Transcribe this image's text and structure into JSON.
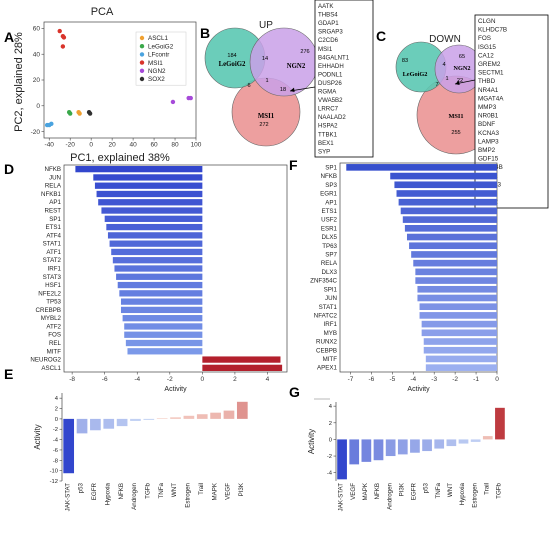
{
  "chart_data": [
    {
      "panel": "A",
      "type": "scatter",
      "title": "PCA",
      "xlabel": "PC1, explained 38%",
      "ylabel": "PC2, explained 28%",
      "xlim": [
        -45,
        100
      ],
      "ylim": [
        -25,
        65
      ],
      "xticks": [
        -40,
        -20,
        0,
        20,
        40,
        60,
        80,
        100
      ],
      "yticks": [
        -20,
        0,
        20,
        40,
        60
      ],
      "legend_position": "top-right",
      "series": [
        {
          "name": "ASCL1",
          "color": "#f0a030",
          "points": [
            [
              -12,
              -5
            ],
            [
              -11,
              -6
            ]
          ]
        },
        {
          "name": "LeGoiG2",
          "color": "#3aa84a",
          "points": [
            [
              -21,
              -5
            ],
            [
              -20,
              -6
            ]
          ]
        },
        {
          "name": "LFcontr",
          "color": "#4aa3df",
          "points": [
            [
              -40,
              -15
            ],
            [
              -38,
              -14
            ],
            [
              -42,
              -15
            ]
          ]
        },
        {
          "name": "MSI1",
          "color": "#d9342b",
          "points": [
            [
              -30,
              58
            ],
            [
              -27,
              54
            ],
            [
              -26,
              53
            ],
            [
              -27,
              46
            ]
          ]
        },
        {
          "name": "NGN2",
          "color": "#a64ad9",
          "points": [
            [
              78,
              3
            ],
            [
              93,
              6
            ],
            [
              95,
              6
            ]
          ]
        },
        {
          "name": "SOX2",
          "color": "#303030",
          "points": [
            [
              -2,
              -5
            ],
            [
              -1,
              -6
            ]
          ]
        }
      ]
    },
    {
      "panel": "B",
      "type": "venn",
      "title": "UP",
      "sets": [
        {
          "name": "LeGoiG2",
          "only": 184,
          "color": "#5bc8b3"
        },
        {
          "name": "NGN2",
          "only": 276,
          "color": "#c9a0e8"
        },
        {
          "name": "MSI1",
          "only": 272,
          "color": "#ec9a9a"
        }
      ],
      "overlaps": {
        "LeGoiG2_NGN2": 14,
        "LeGoiG2_MSI1": 6,
        "NGN2_MSI1": 18,
        "all": 1
      },
      "genes": [
        "AATK",
        "THBS4",
        "GDAP1",
        "SRGAP3",
        "C2CD6",
        "MSI1",
        "B4GALNT1",
        "EHHADH",
        "PODNL1",
        "DUSP26",
        "RGMA",
        "VWA5B2",
        "LRRC7",
        "NAALAD2",
        "HSPA2",
        "TTBK1",
        "BEX1",
        "SYP"
      ]
    },
    {
      "panel": "C",
      "type": "venn",
      "title": "DOWN",
      "sets": [
        {
          "name": "LeGoiG2",
          "only": 83,
          "color": "#5bc8b3"
        },
        {
          "name": "NGN2",
          "only": 65,
          "color": "#c9a0e8"
        },
        {
          "name": "MSI1",
          "only": 255,
          "color": "#ec9a9a"
        }
      ],
      "overlaps": {
        "LeGoiG2_NGN2": 4,
        "LeGoiG2_MSI1": 7,
        "NGN2_MSI1": 22,
        "all": 1
      },
      "genes": [
        "CLGN",
        "KLHDC7B",
        "FOS",
        "ISG15",
        "CA12",
        "GREM2",
        "SECTM1",
        "THBD",
        "NR4A1",
        "MGAT4A",
        "MMP3",
        "NR0B1",
        "BDNF",
        "KCNA3",
        "LAMP3",
        "BMP2",
        "GDF15",
        "C2CD4B",
        "PLPP1",
        "ATP2A3",
        "SHFL",
        "P2RY2"
      ]
    },
    {
      "panel": "D",
      "type": "bar",
      "orientation": "horizontal",
      "xlabel": "Activity",
      "xlim": [
        -8.5,
        5.2
      ],
      "xticks": [
        -8,
        -6,
        -4,
        -2,
        0,
        2,
        4
      ],
      "categories": [
        "NFKB",
        "JUN",
        "RELA",
        "NFKB1",
        "AP1",
        "REST",
        "SP1",
        "ETS1",
        "ATF4",
        "STAT1",
        "ATF1",
        "STAT2",
        "IRF1",
        "STAT3",
        "HSF1",
        "NFE2L2",
        "TP53",
        "CREBPB",
        "MYBL2",
        "ATF2",
        "FOS",
        "REL",
        "MITF",
        "NEUROG2",
        "ASCL1"
      ],
      "values": [
        -7.8,
        -6.7,
        -6.6,
        -6.5,
        -6.4,
        -6.2,
        -6.0,
        -5.9,
        -5.8,
        -5.7,
        -5.6,
        -5.5,
        -5.4,
        -5.3,
        -5.2,
        -5.1,
        -5.0,
        -5.0,
        -4.9,
        -4.8,
        -4.8,
        -4.7,
        -4.6,
        4.8,
        4.9
      ]
    },
    {
      "panel": "F",
      "type": "bar",
      "orientation": "horizontal",
      "xlabel": "Activity",
      "xlim": [
        -7.5,
        0
      ],
      "xticks": [
        -7,
        -6,
        -5,
        -4,
        -3,
        -2,
        -1,
        0
      ],
      "categories": [
        "SP1",
        "NFKB",
        "SP3",
        "EGR1",
        "AP1",
        "ETS1",
        "USF2",
        "ESR1",
        "DLX5",
        "TP63",
        "SP7",
        "RELA",
        "DLX3",
        "ZNF354C",
        "SPI1",
        "JUN",
        "STAT1",
        "NFATC2",
        "IRF1",
        "MYB",
        "RUNX2",
        "CEBPB",
        "MITF",
        "APEX1"
      ],
      "values": [
        -7.2,
        -5.1,
        -4.9,
        -4.8,
        -4.7,
        -4.6,
        -4.5,
        -4.4,
        -4.3,
        -4.2,
        -4.1,
        -4.0,
        -3.9,
        -3.9,
        -3.8,
        -3.8,
        -3.7,
        -3.7,
        -3.6,
        -3.6,
        -3.5,
        -3.5,
        -3.4,
        -3.4
      ]
    },
    {
      "panel": "E",
      "type": "bar",
      "ylabel": "Activity",
      "ylim": [
        -12,
        5
      ],
      "yticks": [
        4,
        2,
        0,
        -2,
        -4,
        -6,
        -8,
        -10,
        -12
      ],
      "categories": [
        "JAK-STAT",
        "p53",
        "EGFR",
        "Hypoxia",
        "NFKB",
        "Androgen",
        "TGFb",
        "TNFa",
        "WNT",
        "Estrogen",
        "Trail",
        "MAPK",
        "VEGF",
        "PI3K"
      ],
      "values": [
        -10.5,
        -2.8,
        -2.2,
        -1.9,
        -1.4,
        -0.4,
        -0.2,
        0.1,
        0.3,
        0.6,
        0.9,
        1.2,
        1.6,
        3.3
      ]
    },
    {
      "panel": "G",
      "type": "bar",
      "ylabel": "Activity",
      "ylim": [
        -5,
        4.5
      ],
      "yticks": [
        4,
        2,
        0,
        -2,
        -4
      ],
      "categories": [
        "JAK-STAT",
        "VEGF",
        "MAPK",
        "NFKB",
        "Androgen",
        "PI3K",
        "EGFR",
        "p53",
        "TNFa",
        "WNT",
        "Hypoxia",
        "Estrogen",
        "Trail",
        "TGFb"
      ],
      "values": [
        -4.8,
        -3.0,
        -2.7,
        -2.5,
        -2.0,
        -1.8,
        -1.6,
        -1.4,
        -1.1,
        -0.8,
        -0.5,
        -0.3,
        0.4,
        3.8
      ]
    }
  ]
}
